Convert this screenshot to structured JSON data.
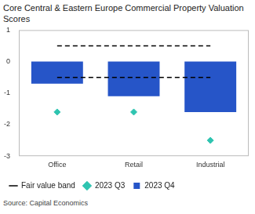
{
  "chart_data": {
    "type": "bar",
    "title": "Core Central & Eastern Europe Commercial Property Valuation Scores",
    "source": "Source: Capital Economics",
    "categories": [
      "Office",
      "Retail",
      "Industrial"
    ],
    "series": [
      {
        "name": "2023 Q4",
        "type": "bar",
        "color": "#2655c8",
        "values": [
          -0.7,
          -1.1,
          -1.6
        ]
      },
      {
        "name": "2023 Q3",
        "type": "scatter",
        "marker": "diamond",
        "color": "#2ec4b0",
        "values": [
          -1.6,
          -1.6,
          -2.5
        ]
      }
    ],
    "fair_value_band": {
      "name": "Fair value band",
      "color": "#000000",
      "line_style": "dashed",
      "values": [
        -0.5,
        0.5
      ]
    },
    "ylim": [
      -3,
      1
    ],
    "yticks": [
      -3,
      -2,
      -1,
      0,
      1
    ],
    "grid": false,
    "legend": "bottom"
  }
}
